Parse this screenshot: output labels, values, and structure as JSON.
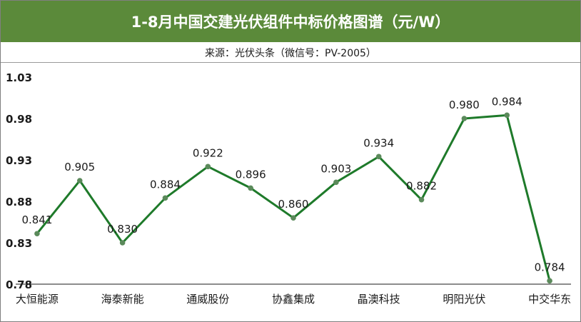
{
  "chart_data": {
    "type": "line",
    "title": "1-8月中国交建光伏组件中标价格图谱（元/W）",
    "subtitle": "来源：光伏头条（微信号：PV-2005）",
    "xlabel": "",
    "ylabel": "",
    "ylim": [
      0.78,
      1.03
    ],
    "yticks": [
      "0.78",
      "0.83",
      "0.88",
      "0.93",
      "0.98",
      "1.03"
    ],
    "tick_categories": [
      "大恒能源",
      "海泰新能",
      "通威股份",
      "协鑫集成",
      "晶澳科技",
      "明阳光伏",
      "中交华东"
    ],
    "values": [
      0.841,
      0.905,
      0.83,
      0.884,
      0.922,
      0.896,
      0.86,
      0.903,
      0.934,
      0.882,
      0.98,
      0.984,
      0.784
    ],
    "value_labels": [
      "0.841",
      "0.905",
      "0.830",
      "0.884",
      "0.922",
      "0.896",
      "0.860",
      "0.903",
      "0.934",
      "0.882",
      "0.980",
      "0.984",
      "0.784"
    ],
    "grid": false,
    "legend": "none",
    "line_color": "#1e7a2a",
    "marker_color": "#5b8a5b"
  }
}
